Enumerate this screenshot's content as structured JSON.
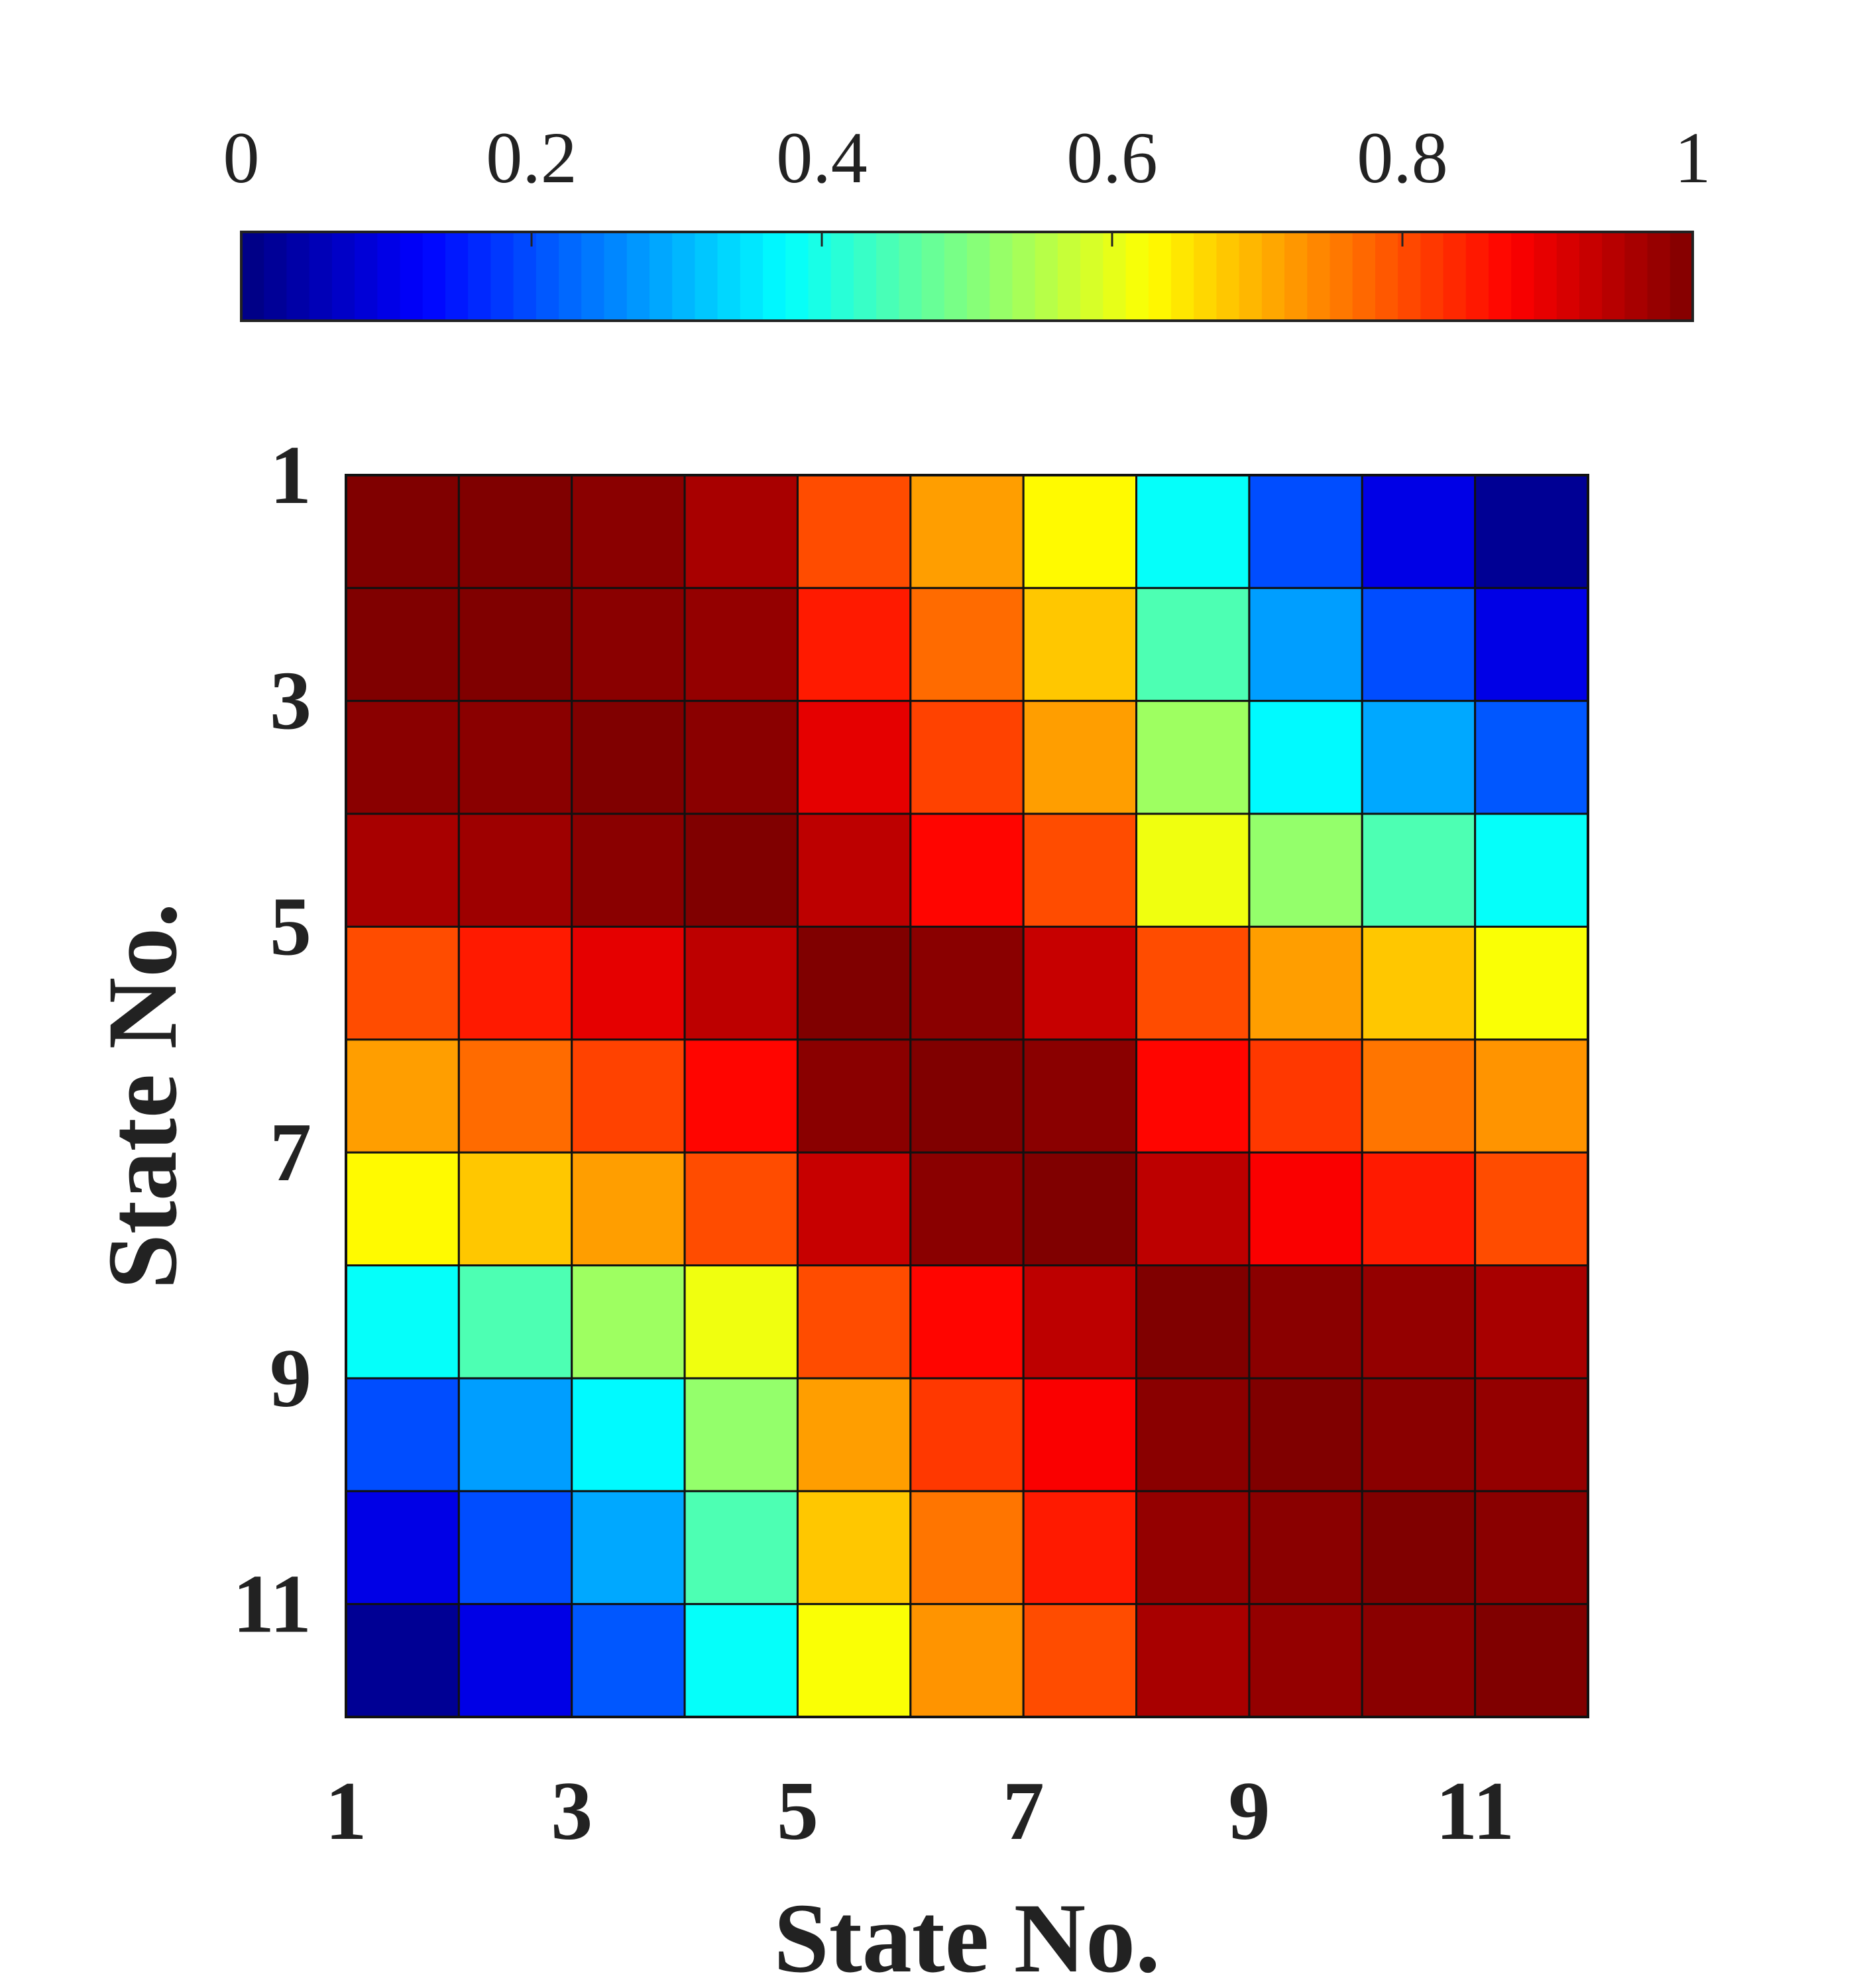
{
  "chart_data": {
    "type": "heatmap",
    "xlabel": "State No.",
    "ylabel": "State No.",
    "x_tick_labels": [
      "1",
      "3",
      "5",
      "7",
      "9",
      "11"
    ],
    "y_tick_labels": [
      "1",
      "3",
      "5",
      "7",
      "9",
      "11"
    ],
    "colorbar": {
      "position": "top",
      "colormap": "jet",
      "range": [
        0,
        1
      ],
      "tick_labels": [
        "0",
        "0.2",
        "0.4",
        "0.6",
        "0.8",
        "1"
      ]
    },
    "grid": true,
    "matrix": [
      [
        1.0,
        1.0,
        0.99,
        0.96,
        0.8,
        0.72,
        0.63,
        0.38,
        0.2,
        0.1,
        0.02
      ],
      [
        1.0,
        1.0,
        0.99,
        0.98,
        0.85,
        0.77,
        0.68,
        0.45,
        0.28,
        0.2,
        0.1
      ],
      [
        0.99,
        0.99,
        1.0,
        0.99,
        0.9,
        0.81,
        0.72,
        0.53,
        0.37,
        0.29,
        0.21
      ],
      [
        0.96,
        0.97,
        0.99,
        1.0,
        0.94,
        0.87,
        0.8,
        0.61,
        0.52,
        0.45,
        0.38
      ],
      [
        0.8,
        0.85,
        0.9,
        0.94,
        1.0,
        0.99,
        0.93,
        0.8,
        0.72,
        0.68,
        0.62
      ],
      [
        0.72,
        0.77,
        0.81,
        0.87,
        0.99,
        1.0,
        0.99,
        0.87,
        0.82,
        0.76,
        0.73
      ],
      [
        0.63,
        0.68,
        0.72,
        0.8,
        0.93,
        0.99,
        1.0,
        0.94,
        0.88,
        0.85,
        0.8
      ],
      [
        0.38,
        0.45,
        0.53,
        0.61,
        0.8,
        0.87,
        0.94,
        1.0,
        0.99,
        0.98,
        0.96
      ],
      [
        0.2,
        0.28,
        0.37,
        0.52,
        0.72,
        0.82,
        0.88,
        0.99,
        1.0,
        0.99,
        0.98
      ],
      [
        0.1,
        0.2,
        0.29,
        0.45,
        0.68,
        0.76,
        0.85,
        0.98,
        0.99,
        1.0,
        0.99
      ],
      [
        0.02,
        0.1,
        0.21,
        0.38,
        0.62,
        0.73,
        0.8,
        0.96,
        0.98,
        0.99,
        1.0
      ]
    ]
  }
}
